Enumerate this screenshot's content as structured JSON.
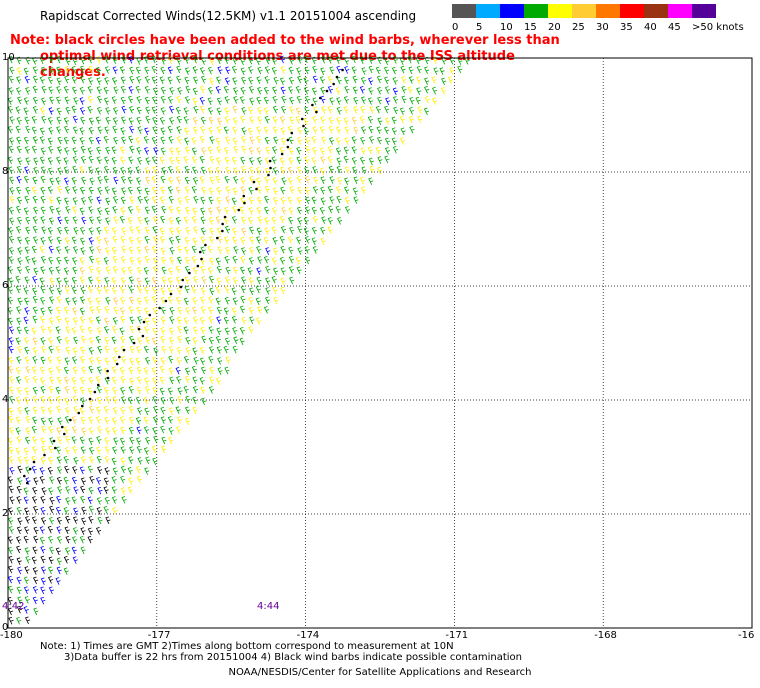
{
  "title": "Rapidscat Corrected Winds(12.5KM) v1.1 20151004 ascending",
  "note": {
    "line1": "Note: black circles have been added to the wind barbs, wherever less than",
    "line2": "optimal wind retrieval conditions are met due to the ISS altitude changes."
  },
  "colorbar": {
    "labels": [
      "0",
      "5",
      "10",
      "15",
      "20",
      "25",
      "30",
      "35",
      "40",
      "45",
      ">50 knots"
    ],
    "colors": [
      "#555555",
      "#00aaff",
      "#0000ff",
      "#00aa00",
      "#ffff00",
      "#ffcc33",
      "#ff7700",
      "#ff0000",
      "#993311",
      "#ff00ff",
      "#550099"
    ]
  },
  "chart_data": {
    "type": "map-wind-barbs",
    "x_ticks": [
      "-180",
      "-177",
      "-174",
      "-171",
      "-168",
      "-16"
    ],
    "y_ticks": [
      "0",
      "2",
      "4",
      "6",
      "8",
      "10"
    ],
    "xlim": [
      -180,
      -165
    ],
    "ylim": [
      0,
      10
    ],
    "grid": true,
    "time_labels": [
      "4:42",
      "4:44"
    ]
  },
  "footnote": {
    "line1": "Note: 1) Times are GMT 2)Times along bottom correspond to measurement at 10N",
    "line2": "3)Data buffer is 22 hrs from 20151004 4) Black wind barbs indicate possible contamination"
  },
  "credit": "NOAA/NESDIS/Center for Satellite Applications and Research"
}
